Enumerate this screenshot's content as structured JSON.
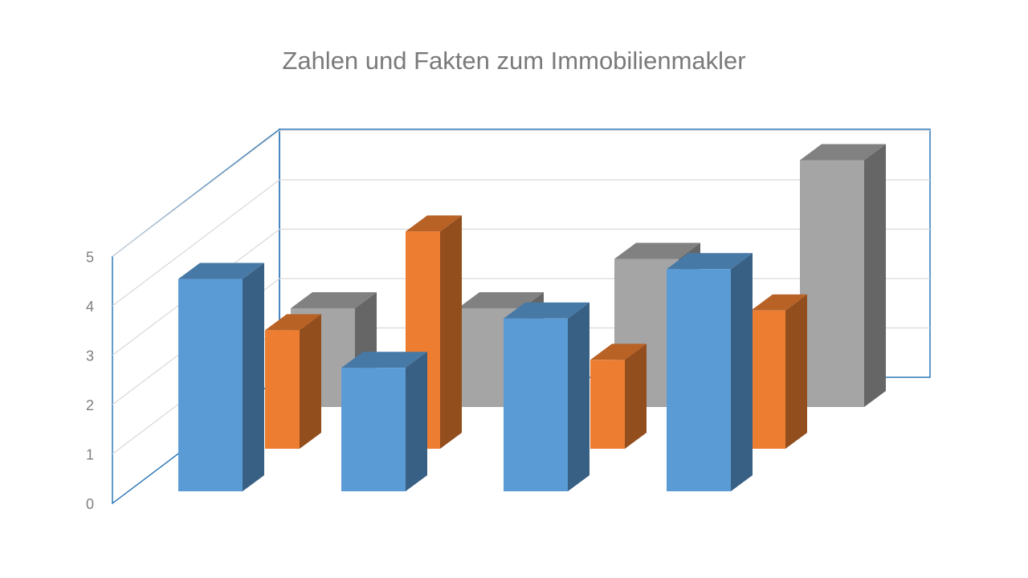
{
  "chart_data": {
    "type": "bar",
    "title": "Zahlen und Fakten zum Immobilienmakler",
    "xlabel": "",
    "ylabel": "",
    "ylim": [
      0,
      5
    ],
    "yticks": [
      "0",
      "1",
      "2",
      "3",
      "4",
      "5"
    ],
    "categories": [
      "",
      "",
      "",
      ""
    ],
    "series": [
      {
        "values": [
          4.3,
          2.5,
          3.5,
          4.5
        ],
        "color": "#5b9bd5"
      },
      {
        "values": [
          2.4,
          4.4,
          1.8,
          2.8
        ],
        "color": "#ed7d31"
      },
      {
        "values": [
          2.0,
          2.0,
          3.0,
          5.0
        ],
        "color": "#a5a5a5"
      }
    ],
    "grid": true,
    "legend": "none",
    "projection": "3d"
  }
}
